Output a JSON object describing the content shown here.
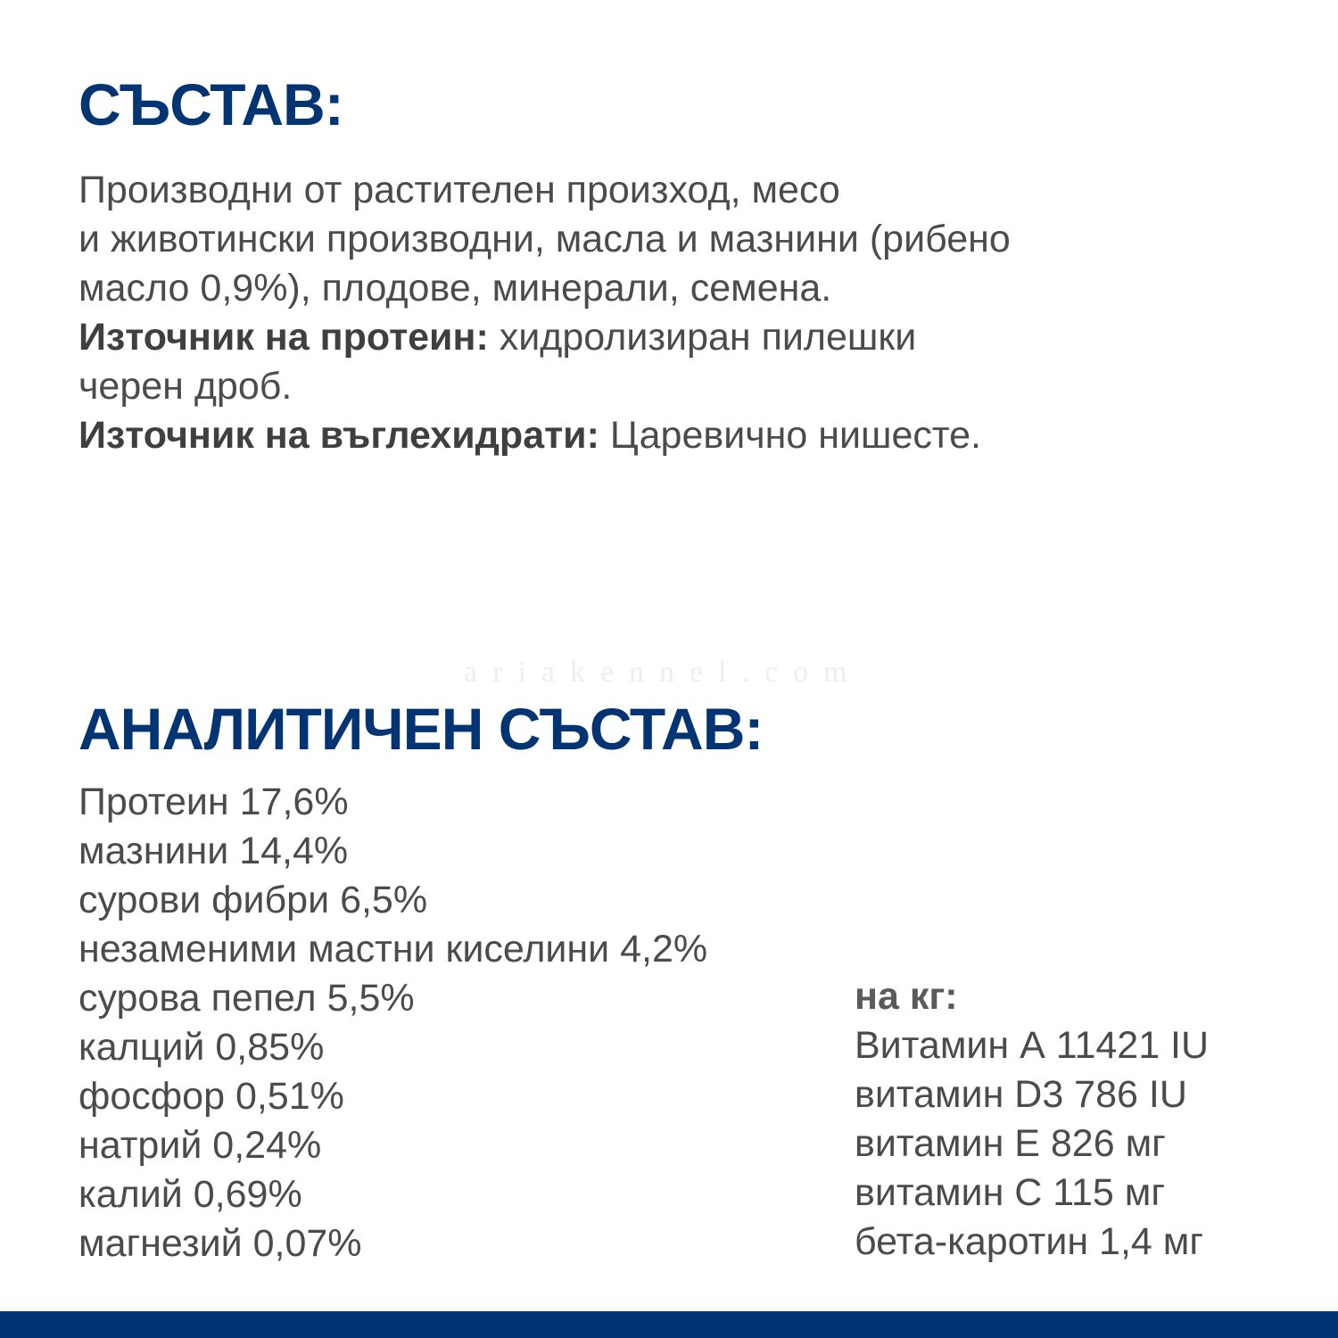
{
  "composition": {
    "title": "СЪСТАВ:",
    "lines": [
      "Производни от растителен произход, месо",
      "и животински производни, масла и мазнини (рибено",
      "масло 0,9%), плодове, минерали, семена."
    ],
    "protein_label": "Източник на протеин:",
    "protein_value": " хидролизиран пилешки",
    "protein_value_cont": "черен дроб.",
    "carb_label": "Източник на въглехидрати:",
    "carb_value": " Царевично нишесте."
  },
  "watermark": "ariakennel.com",
  "analytical": {
    "title": "АНАЛИТИЧЕН СЪСТАВ:",
    "items": [
      "Протеин 17,6%",
      "мазнини 14,4%",
      "сурови фибри 6,5%",
      "незаменими мастни киселини 4,2%",
      "сурова пепел 5,5%",
      "калций 0,85%",
      "фосфор 0,51%",
      "натрий 0,24%",
      "калий 0,69%",
      "магнезий 0,07%"
    ],
    "per_kg_title": "на кг:",
    "per_kg": [
      "Витамин А 11421 IU",
      "витамин D3 786 IU",
      "витамин Е 826 мг",
      "витамин С 115 мг",
      "бета-каротин 1,4 мг"
    ]
  },
  "colors": {
    "brand": "#003473",
    "text": "#4b4b4d"
  }
}
